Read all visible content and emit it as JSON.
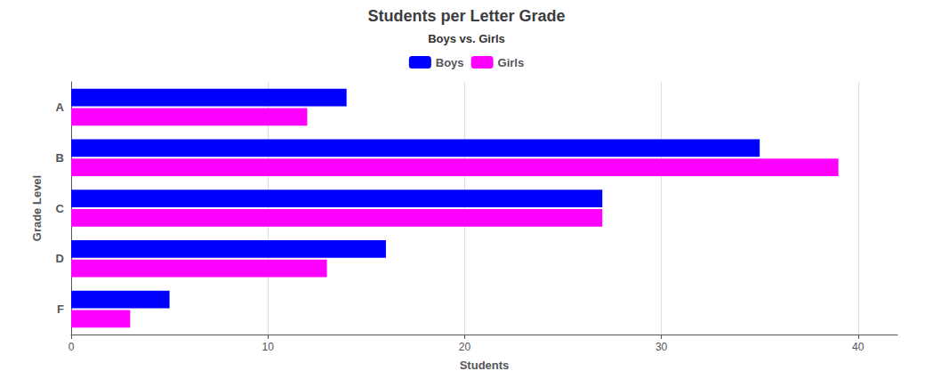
{
  "chart_data": {
    "type": "bar",
    "orientation": "horizontal",
    "title": "Students per Letter Grade",
    "subtitle": "Boys vs. Girls",
    "categories": [
      "A",
      "B",
      "C",
      "D",
      "F"
    ],
    "series": [
      {
        "name": "Boys",
        "color": "#0000FF",
        "values": [
          14,
          35,
          27,
          16,
          5
        ]
      },
      {
        "name": "Girls",
        "color": "#FF00FF",
        "values": [
          12,
          39,
          27,
          13,
          3
        ]
      }
    ],
    "xlabel": "Students",
    "ylabel": "Grade Level",
    "xlim": [
      0,
      42
    ],
    "xticks": [
      0,
      10,
      20,
      30,
      40
    ],
    "grid": true,
    "legend": "top"
  }
}
